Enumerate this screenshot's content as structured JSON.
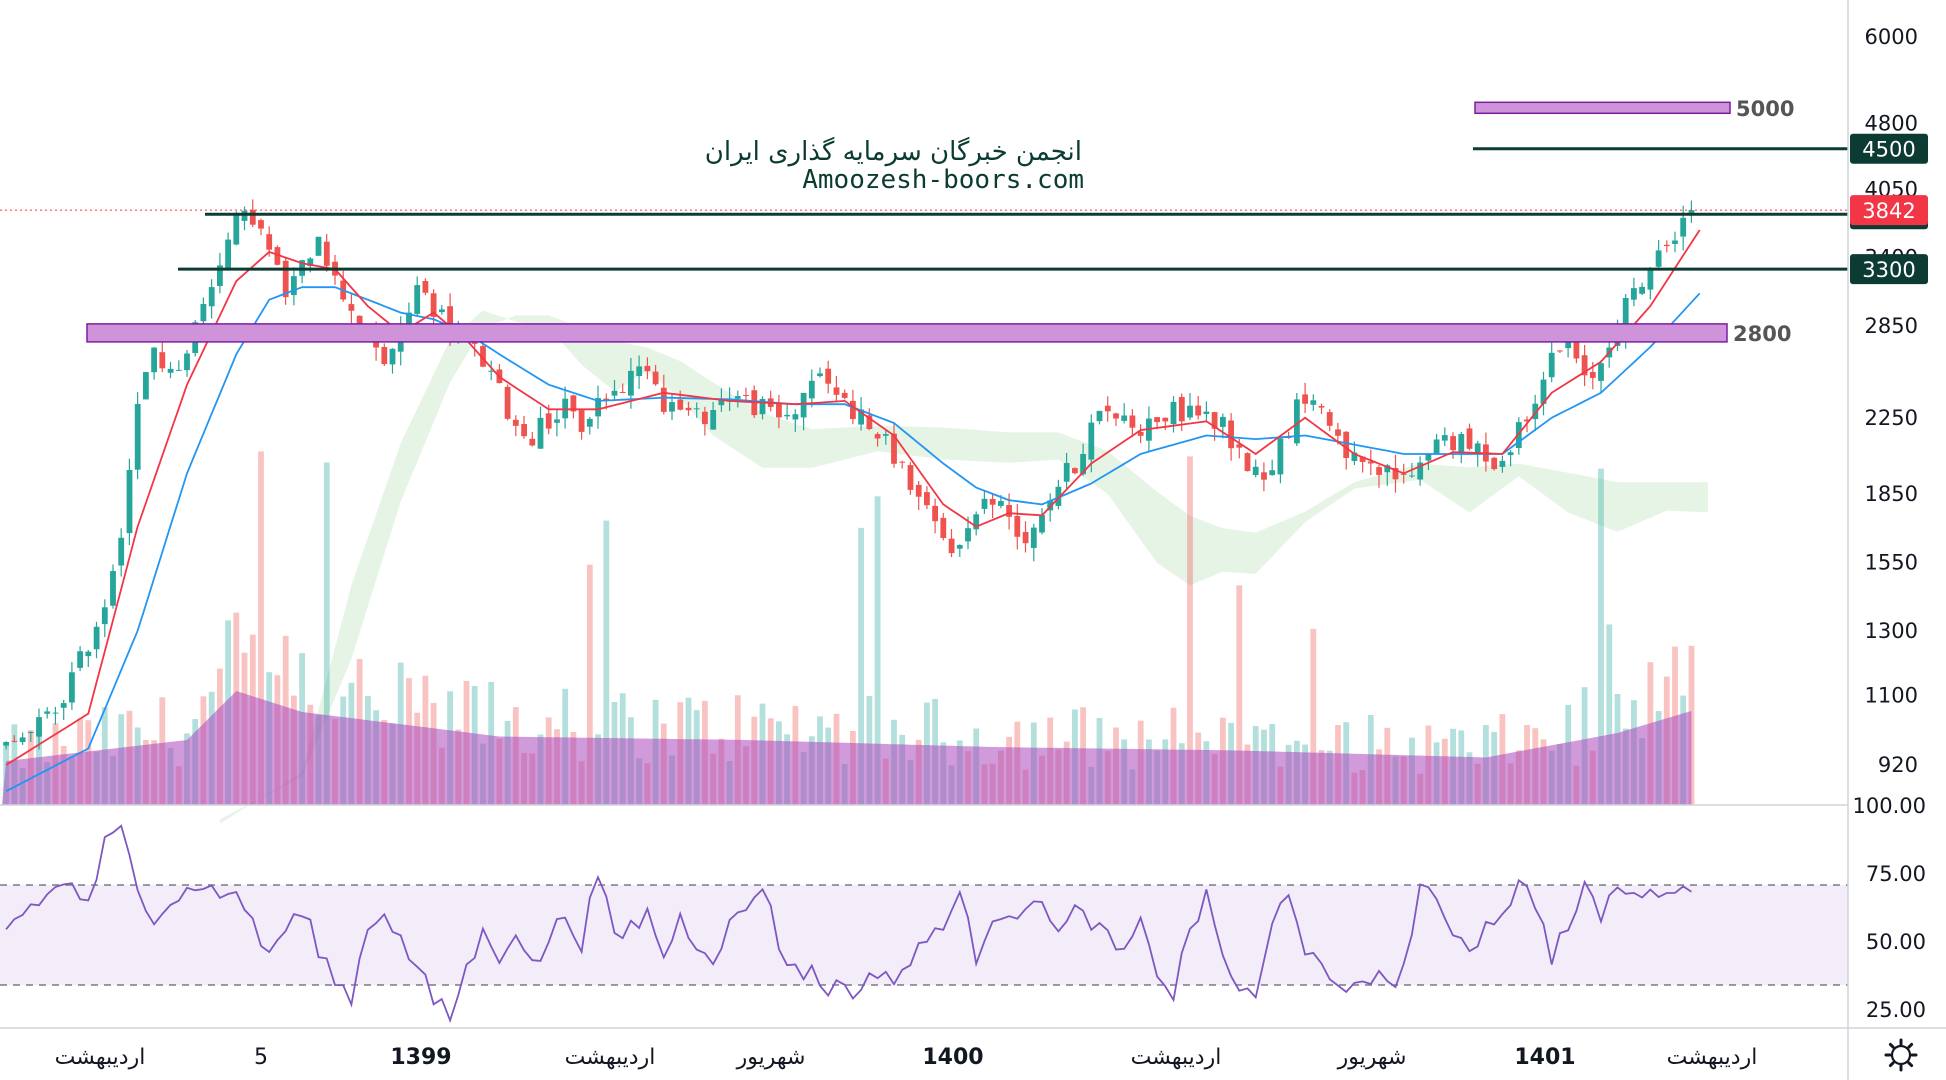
{
  "watermark": {
    "line1": "انجمن خبرگان سرمایه گذاری ایران",
    "line2": "Amoozesh-boors.com"
  },
  "colors": {
    "up": "#26a69a",
    "down": "#ef5350",
    "ema_fast": "#f23645",
    "ema_slow": "#2196f3",
    "level_line": "#0c3b33",
    "zone_fill": "#ce93d8",
    "zone_border": "#7b1fa2",
    "rsi": "#7e57c2",
    "price_badge": "#f23645"
  },
  "chart_data": [
    {
      "type": "candlestick",
      "price_axis": {
        "scale": "log",
        "range": [
          830,
          6600
        ],
        "ticks": [
          6000,
          4800,
          4050,
          3400,
          2850,
          2250,
          1850,
          1550,
          1300,
          1100,
          920
        ]
      },
      "time_axis": {
        "labels": [
          "اردیبهشت",
          "5",
          "1399",
          "اردیبهشت",
          "شهریور",
          "1400",
          "اردیبهشت",
          "شهریور",
          "1401",
          "اردیبهشت"
        ],
        "bold": [
          false,
          false,
          true,
          false,
          false,
          true,
          false,
          false,
          true,
          false
        ]
      },
      "approx_close_path": [
        [
          0,
          960
        ],
        [
          3,
          1000
        ],
        [
          6,
          1060
        ],
        [
          9,
          1200
        ],
        [
          12,
          1400
        ],
        [
          14,
          1700
        ],
        [
          16,
          2300
        ],
        [
          18,
          2700
        ],
        [
          20,
          2500
        ],
        [
          22,
          2700
        ],
        [
          24,
          3000
        ],
        [
          26,
          3400
        ],
        [
          28,
          3700
        ],
        [
          30,
          3800
        ],
        [
          32,
          3450
        ],
        [
          34,
          3100
        ],
        [
          36,
          3300
        ],
        [
          38,
          3650
        ],
        [
          40,
          3200
        ],
        [
          42,
          3000
        ],
        [
          44,
          2750
        ],
        [
          46,
          2600
        ],
        [
          48,
          2800
        ],
        [
          50,
          3150
        ],
        [
          52,
          3000
        ],
        [
          54,
          2850
        ],
        [
          56,
          2750
        ],
        [
          58,
          2600
        ],
        [
          60,
          2400
        ],
        [
          62,
          2200
        ],
        [
          64,
          2150
        ],
        [
          66,
          2250
        ],
        [
          68,
          2300
        ],
        [
          70,
          2200
        ],
        [
          72,
          2350
        ],
        [
          74,
          2400
        ],
        [
          76,
          2500
        ],
        [
          78,
          2600
        ],
        [
          80,
          2350
        ],
        [
          82,
          2300
        ],
        [
          84,
          2250
        ],
        [
          86,
          2300
        ],
        [
          88,
          2400
        ],
        [
          90,
          2350
        ],
        [
          92,
          2300
        ],
        [
          94,
          2250
        ],
        [
          96,
          2300
        ],
        [
          98,
          2500
        ],
        [
          100,
          2450
        ],
        [
          102,
          2350
        ],
        [
          104,
          2250
        ],
        [
          106,
          2150
        ],
        [
          108,
          2050
        ],
        [
          110,
          1900
        ],
        [
          112,
          1750
        ],
        [
          114,
          1650
        ],
        [
          116,
          1600
        ],
        [
          118,
          1800
        ],
        [
          120,
          1820
        ],
        [
          122,
          1750
        ],
        [
          124,
          1650
        ],
        [
          126,
          1780
        ],
        [
          128,
          1900
        ],
        [
          130,
          2000
        ],
        [
          132,
          2200
        ],
        [
          134,
          2300
        ],
        [
          136,
          2250
        ],
        [
          138,
          2200
        ],
        [
          140,
          2250
        ],
        [
          142,
          2280
        ],
        [
          144,
          2300
        ],
        [
          146,
          2250
        ],
        [
          148,
          2200
        ],
        [
          150,
          2050
        ],
        [
          152,
          1950
        ],
        [
          154,
          2000
        ],
        [
          156,
          2200
        ],
        [
          158,
          2400
        ],
        [
          160,
          2300
        ],
        [
          162,
          2150
        ],
        [
          164,
          2000
        ],
        [
          166,
          1950
        ],
        [
          168,
          1950
        ],
        [
          170,
          1920
        ],
        [
          172,
          2000
        ],
        [
          174,
          2150
        ],
        [
          176,
          2120
        ],
        [
          178,
          2080
        ],
        [
          180,
          2050
        ],
        [
          182,
          2000
        ],
        [
          184,
          2200
        ],
        [
          186,
          2400
        ],
        [
          188,
          2600
        ],
        [
          190,
          2750
        ],
        [
          192,
          2450
        ],
        [
          194,
          2600
        ],
        [
          196,
          2900
        ],
        [
          198,
          3100
        ],
        [
          200,
          3300
        ],
        [
          202,
          3500
        ],
        [
          204,
          3800
        ],
        [
          205,
          3842
        ]
      ],
      "ema_fast_path": [
        [
          0,
          920
        ],
        [
          10,
          1050
        ],
        [
          16,
          1700
        ],
        [
          22,
          2450
        ],
        [
          28,
          3200
        ],
        [
          32,
          3450
        ],
        [
          36,
          3350
        ],
        [
          40,
          3300
        ],
        [
          44,
          3000
        ],
        [
          48,
          2800
        ],
        [
          52,
          2950
        ],
        [
          56,
          2750
        ],
        [
          60,
          2500
        ],
        [
          66,
          2300
        ],
        [
          72,
          2300
        ],
        [
          80,
          2400
        ],
        [
          88,
          2350
        ],
        [
          96,
          2330
        ],
        [
          102,
          2350
        ],
        [
          108,
          2150
        ],
        [
          114,
          1800
        ],
        [
          118,
          1700
        ],
        [
          122,
          1760
        ],
        [
          126,
          1750
        ],
        [
          132,
          2000
        ],
        [
          138,
          2180
        ],
        [
          146,
          2230
        ],
        [
          152,
          2050
        ],
        [
          158,
          2250
        ],
        [
          164,
          2050
        ],
        [
          170,
          1950
        ],
        [
          176,
          2060
        ],
        [
          182,
          2050
        ],
        [
          188,
          2400
        ],
        [
          194,
          2600
        ],
        [
          200,
          3000
        ],
        [
          206,
          3650
        ]
      ],
      "ema_slow_path": [
        [
          0,
          860
        ],
        [
          10,
          960
        ],
        [
          16,
          1300
        ],
        [
          22,
          1950
        ],
        [
          28,
          2650
        ],
        [
          32,
          3050
        ],
        [
          36,
          3150
        ],
        [
          40,
          3150
        ],
        [
          44,
          3050
        ],
        [
          48,
          2950
        ],
        [
          52,
          2900
        ],
        [
          56,
          2800
        ],
        [
          60,
          2650
        ],
        [
          66,
          2450
        ],
        [
          72,
          2350
        ],
        [
          80,
          2370
        ],
        [
          88,
          2360
        ],
        [
          96,
          2330
        ],
        [
          102,
          2330
        ],
        [
          108,
          2220
        ],
        [
          114,
          2000
        ],
        [
          118,
          1880
        ],
        [
          122,
          1820
        ],
        [
          126,
          1800
        ],
        [
          132,
          1900
        ],
        [
          138,
          2050
        ],
        [
          146,
          2150
        ],
        [
          152,
          2130
        ],
        [
          158,
          2150
        ],
        [
          164,
          2100
        ],
        [
          170,
          2050
        ],
        [
          176,
          2050
        ],
        [
          182,
          2050
        ],
        [
          188,
          2250
        ],
        [
          194,
          2400
        ],
        [
          200,
          2700
        ],
        [
          206,
          3100
        ]
      ],
      "annotations": [
        {
          "label": "5000",
          "kind": "zone",
          "price": 5000
        },
        {
          "label": "2800",
          "kind": "zone",
          "price": 2800
        },
        {
          "label": "4500",
          "kind": "line",
          "price": 4500
        },
        {
          "label": "3800",
          "kind": "line",
          "price": 3800
        },
        {
          "label": "3300",
          "kind": "line",
          "price": 3300
        }
      ],
      "last_price": {
        "label": "3842",
        "value": 3842
      }
    },
    {
      "type": "line",
      "indicator": "RSI",
      "y_range": [
        18,
        100
      ],
      "ticks": [
        "100.00",
        "75.00",
        "50.00",
        "25.00"
      ],
      "band": [
        30,
        70
      ],
      "approx_path": [
        [
          0,
          55
        ],
        [
          4,
          65
        ],
        [
          8,
          72
        ],
        [
          10,
          62
        ],
        [
          12,
          85
        ],
        [
          14,
          90
        ],
        [
          16,
          70
        ],
        [
          18,
          60
        ],
        [
          20,
          65
        ],
        [
          22,
          68
        ],
        [
          24,
          72
        ],
        [
          26,
          65
        ],
        [
          28,
          70
        ],
        [
          30,
          55
        ],
        [
          32,
          45
        ],
        [
          34,
          55
        ],
        [
          36,
          60
        ],
        [
          38,
          48
        ],
        [
          40,
          35
        ],
        [
          42,
          30
        ],
        [
          44,
          55
        ],
        [
          46,
          62
        ],
        [
          48,
          50
        ],
        [
          50,
          40
        ],
        [
          52,
          28
        ],
        [
          54,
          22
        ],
        [
          56,
          40
        ],
        [
          58,
          52
        ],
        [
          60,
          45
        ],
        [
          62,
          55
        ],
        [
          64,
          40
        ],
        [
          66,
          50
        ],
        [
          68,
          60
        ],
        [
          70,
          50
        ],
        [
          72,
          75
        ],
        [
          74,
          50
        ],
        [
          76,
          55
        ],
        [
          78,
          60
        ],
        [
          80,
          45
        ],
        [
          82,
          58
        ],
        [
          84,
          50
        ],
        [
          86,
          45
        ],
        [
          88,
          55
        ],
        [
          90,
          62
        ],
        [
          92,
          72
        ],
        [
          94,
          48
        ],
        [
          96,
          40
        ],
        [
          98,
          38
        ],
        [
          100,
          32
        ],
        [
          102,
          35
        ],
        [
          104,
          30
        ],
        [
          106,
          40
        ],
        [
          108,
          36
        ],
        [
          110,
          42
        ],
        [
          112,
          50
        ],
        [
          114,
          58
        ],
        [
          116,
          65
        ],
        [
          118,
          45
        ],
        [
          120,
          60
        ],
        [
          122,
          62
        ],
        [
          124,
          58
        ],
        [
          126,
          68
        ],
        [
          128,
          52
        ],
        [
          130,
          60
        ],
        [
          132,
          58
        ],
        [
          134,
          50
        ],
        [
          136,
          45
        ],
        [
          138,
          55
        ],
        [
          140,
          40
        ],
        [
          142,
          30
        ],
        [
          144,
          55
        ],
        [
          146,
          65
        ],
        [
          148,
          45
        ],
        [
          150,
          32
        ],
        [
          152,
          28
        ],
        [
          154,
          55
        ],
        [
          156,
          70
        ],
        [
          158,
          48
        ],
        [
          160,
          38
        ],
        [
          162,
          30
        ],
        [
          164,
          35
        ],
        [
          166,
          38
        ],
        [
          168,
          33
        ],
        [
          170,
          40
        ],
        [
          172,
          70
        ],
        [
          174,
          62
        ],
        [
          176,
          55
        ],
        [
          178,
          48
        ],
        [
          180,
          55
        ],
        [
          182,
          62
        ],
        [
          184,
          70
        ],
        [
          186,
          65
        ],
        [
          188,
          45
        ],
        [
          190,
          55
        ],
        [
          192,
          68
        ],
        [
          194,
          60
        ],
        [
          196,
          70
        ],
        [
          198,
          65
        ],
        [
          200,
          72
        ],
        [
          202,
          64
        ],
        [
          204,
          74
        ],
        [
          206,
          68
        ]
      ]
    }
  ]
}
